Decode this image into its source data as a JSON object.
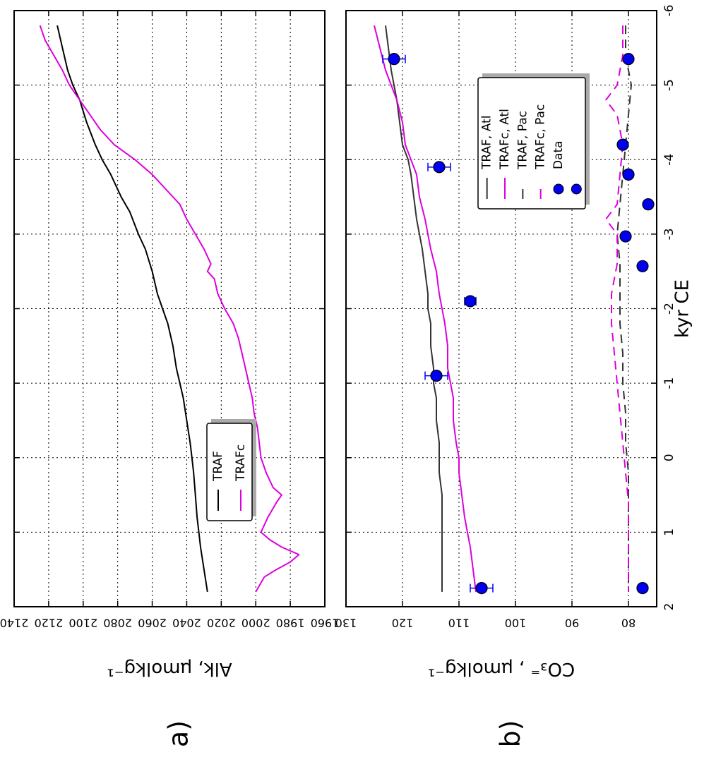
{
  "figure": {
    "xlabel": "kyr CE",
    "panel_a_label": "a)",
    "panel_b_label": "b)"
  },
  "chart_data": [
    {
      "type": "line",
      "panel": "a",
      "xlabel": "",
      "ylabel": "Alk, μmolkg⁻¹",
      "xlim": [
        -6,
        2
      ],
      "ylim": [
        1960,
        2140
      ],
      "x_ticks": [
        -6,
        -5,
        -4,
        -3,
        -2,
        -1,
        0,
        1,
        2
      ],
      "y_ticks": [
        1960,
        1980,
        2000,
        2020,
        2040,
        2060,
        2080,
        2100,
        2120,
        2140
      ],
      "grid": true,
      "legend": "center",
      "colors": {
        "TRAF": "#000000",
        "TRAFc": "#dd00dd"
      },
      "series": [
        {
          "name": "TRAF",
          "style": "solid",
          "color": "#000000",
          "x": [
            -5.8,
            -5.5,
            -5.2,
            -5.0,
            -4.8,
            -4.5,
            -4.2,
            -4.0,
            -3.8,
            -3.5,
            -3.3,
            -3.0,
            -2.8,
            -2.5,
            -2.2,
            -2.0,
            -1.8,
            -1.5,
            -1.2,
            -1.0,
            -0.8,
            -0.5,
            -0.2,
            0.0,
            0.2,
            0.5,
            0.8,
            1.0,
            1.2,
            1.5,
            1.8
          ],
          "y": [
            2115,
            2112,
            2109,
            2106,
            2102,
            2098,
            2093,
            2089,
            2084,
            2078,
            2073,
            2068,
            2064,
            2060,
            2057,
            2054,
            2051,
            2048,
            2046,
            2044,
            2042,
            2040,
            2038,
            2037,
            2036,
            2035,
            2034,
            2033,
            2032,
            2030,
            2028
          ]
        },
        {
          "name": "TRAFc",
          "style": "solid",
          "color": "#dd00dd",
          "x": [
            -5.8,
            -5.6,
            -5.4,
            -5.2,
            -5.0,
            -4.8,
            -4.6,
            -4.4,
            -4.2,
            -4.0,
            -3.8,
            -3.6,
            -3.4,
            -3.2,
            -3.0,
            -2.8,
            -2.6,
            -2.5,
            -2.4,
            -2.2,
            -2.0,
            -1.8,
            -1.6,
            -1.4,
            -1.2,
            -1.0,
            -0.8,
            -0.6,
            -0.4,
            -0.2,
            0.0,
            0.2,
            0.4,
            0.5,
            0.6,
            0.8,
            1.0,
            1.1,
            1.2,
            1.3,
            1.4,
            1.5,
            1.6,
            1.8
          ],
          "y": [
            2125,
            2122,
            2117,
            2112,
            2108,
            2102,
            2096,
            2090,
            2082,
            2070,
            2060,
            2052,
            2044,
            2040,
            2035,
            2030,
            2026,
            2028,
            2024,
            2022,
            2018,
            2013,
            2010,
            2008,
            2006,
            2004,
            2002,
            2001,
            1999,
            1998,
            1997,
            1994,
            1990,
            1985,
            1988,
            1993,
            1997,
            1992,
            1985,
            1975,
            1980,
            1988,
            1995,
            2000
          ]
        }
      ]
    },
    {
      "type": "line",
      "panel": "b",
      "xlabel": "kyr CE",
      "ylabel": "CO₃⁼ , μmolkg⁻¹",
      "xlim": [
        -6,
        2
      ],
      "ylim": [
        75,
        130
      ],
      "x_ticks": [
        -6,
        -5,
        -4,
        -3,
        -2,
        -1,
        0,
        1,
        2
      ],
      "y_ticks": [
        80,
        90,
        100,
        110,
        120,
        130
      ],
      "grid": true,
      "legend": "right",
      "colors": {
        "TRAF": "#333333",
        "TRAFc": "#dd00dd",
        "Data": "#0000ee"
      },
      "series": [
        {
          "name": "TRAF, Atl",
          "style": "solid",
          "color": "#333333",
          "x": [
            -5.8,
            -5.5,
            -5.2,
            -5.0,
            -4.8,
            -4.5,
            -4.2,
            -4.0,
            -3.8,
            -3.5,
            -3.2,
            -3.0,
            -2.8,
            -2.5,
            -2.2,
            -2.0,
            -1.8,
            -1.5,
            -1.2,
            -1.0,
            -0.8,
            -0.5,
            -0.2,
            0.0,
            0.2,
            0.5,
            0.8,
            1.0,
            1.2,
            1.5,
            1.8
          ],
          "y": [
            123,
            122.5,
            122,
            121.5,
            121,
            120.5,
            120,
            119,
            118.5,
            118,
            117.5,
            117,
            116.5,
            116,
            115.5,
            115.5,
            115,
            115,
            114.5,
            114.5,
            114,
            114,
            113.5,
            113.5,
            113.5,
            113,
            113,
            113,
            113,
            113,
            113
          ]
        },
        {
          "name": "TRAFc, Atl",
          "style": "solid",
          "color": "#dd00dd",
          "x": [
            -5.8,
            -5.5,
            -5.2,
            -5.0,
            -4.8,
            -4.5,
            -4.2,
            -4.0,
            -3.8,
            -3.5,
            -3.2,
            -3.0,
            -2.8,
            -2.5,
            -2.2,
            -2.0,
            -1.8,
            -1.5,
            -1.2,
            -1.0,
            -0.8,
            -0.5,
            -0.2,
            0.0,
            0.2,
            0.5,
            0.8,
            1.0,
            1.2,
            1.5,
            1.8
          ],
          "y": [
            125,
            124,
            123,
            122,
            121,
            120,
            119.5,
            118.5,
            117.5,
            117,
            116,
            115.5,
            115,
            114,
            113.5,
            113,
            112.5,
            112,
            112,
            111.5,
            111,
            111,
            110.5,
            110,
            110,
            109.5,
            109,
            108.5,
            108,
            107.5,
            107
          ]
        },
        {
          "name": "TRAF, Pac",
          "style": "dashed",
          "color": "#333333",
          "x": [
            -5.8,
            -5.4,
            -5.0,
            -4.6,
            -4.2,
            -3.8,
            -3.4,
            -3.0,
            -2.6,
            -2.2,
            -1.8,
            -1.4,
            -1.0,
            -0.6,
            -0.2,
            0.2,
            0.6,
            1.0,
            1.4,
            1.8
          ],
          "y": [
            80.5,
            80.5,
            79.5,
            80,
            80.5,
            81,
            81.5,
            82,
            81.5,
            81.5,
            81.5,
            81,
            81,
            80.5,
            80.5,
            80,
            80,
            80,
            80,
            80
          ]
        },
        {
          "name": "TRAFc, Pac",
          "style": "dashed",
          "color": "#dd00dd",
          "x": [
            -5.8,
            -5.4,
            -5.0,
            -4.8,
            -4.6,
            -4.2,
            -3.8,
            -3.4,
            -3.2,
            -3.0,
            -2.6,
            -2.2,
            -1.8,
            -1.4,
            -1.0,
            -0.6,
            -0.2,
            0.2,
            0.6,
            1.0,
            1.4,
            1.8
          ],
          "y": [
            81,
            81,
            82,
            84,
            82,
            81,
            81.5,
            82,
            84,
            82,
            82,
            83,
            83,
            82.5,
            82,
            81.5,
            81,
            80.5,
            80,
            80,
            80,
            80
          ]
        },
        {
          "name": "Data",
          "style": "marker",
          "color": "#0000ee",
          "x": [
            -5.35,
            -3.8,
            -4.2,
            -3.4,
            -2.97,
            -2.57,
            -2.1,
            -1.1,
            1.75,
            1.75,
            -5.35,
            -3.9
          ],
          "y": [
            121.5,
            80,
            81,
            76.5,
            80.5,
            77.5,
            108,
            114,
            106,
            77.5,
            80,
            113.5
          ],
          "y_err": [
            2,
            0,
            0,
            0,
            0,
            0,
            1,
            2,
            2,
            0,
            0,
            2
          ]
        }
      ]
    }
  ]
}
